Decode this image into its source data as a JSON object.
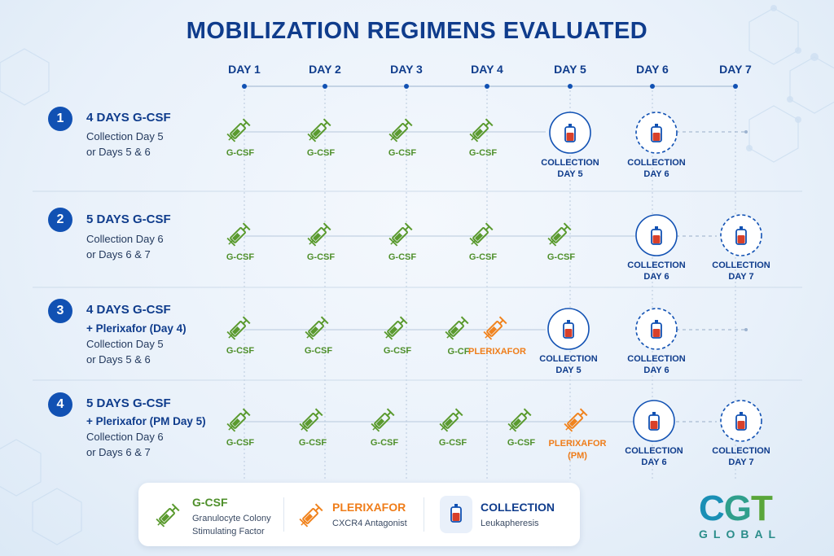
{
  "title": "MOBILIZATION REGIMENS EVALUATED",
  "days": [
    "DAY 1",
    "DAY 2",
    "DAY 3",
    "DAY 4",
    "DAY 5",
    "DAY 6",
    "DAY 7"
  ],
  "colors": {
    "gcsf": "#5a9a2e",
    "plerixafor": "#f0831e",
    "collection": "#1151b3",
    "blood": "#d8402a",
    "title": "#0f3c8c"
  },
  "rows": [
    {
      "number": "1",
      "title": "4 DAYS G-CSF",
      "subtitle_bold": "",
      "subtitle": [
        "Collection Day 5",
        "or Days 5 & 6"
      ]
    },
    {
      "number": "2",
      "title": "5 DAYS G-CSF",
      "subtitle_bold": "",
      "subtitle": [
        "Collection Day 6",
        "or Days 6 & 7"
      ]
    },
    {
      "number": "3",
      "title": "4 DAYS G-CSF",
      "subtitle_bold": "+ Plerixafor (Day 4)",
      "subtitle": [
        "Collection Day 5",
        "or Days 5 & 6"
      ]
    },
    {
      "number": "4",
      "title": "5 DAYS G-CSF",
      "subtitle_bold": "+ Plerixafor (PM Day 5)",
      "subtitle": [
        "Collection Day 6",
        "or Days 6 & 7"
      ]
    }
  ],
  "labels": {
    "gcsf": "G-CSF",
    "gcsf_short": "G-CF",
    "plerixafor": "PLERIXAFOR",
    "plerixafor_pm_1": "PLERIXAFOR",
    "plerixafor_pm_2": "(PM)",
    "collection": "COLLECTION",
    "collection_day5": "DAY 5",
    "collection_day6": "DAY 6",
    "collection_day7": "DAY 7"
  },
  "legend": {
    "gcsf_title": "G-CSF",
    "gcsf_desc_1": "Granulocyte Colony",
    "gcsf_desc_2": "Stimulating Factor",
    "plerixafor_title": "PLERIXAFOR",
    "plerixafor_desc": "CXCR4 Antagonist",
    "collection_title": "COLLECTION",
    "collection_desc": "Leukapheresis"
  },
  "logo": {
    "main": "CGT",
    "sub": "GLOBAL"
  }
}
